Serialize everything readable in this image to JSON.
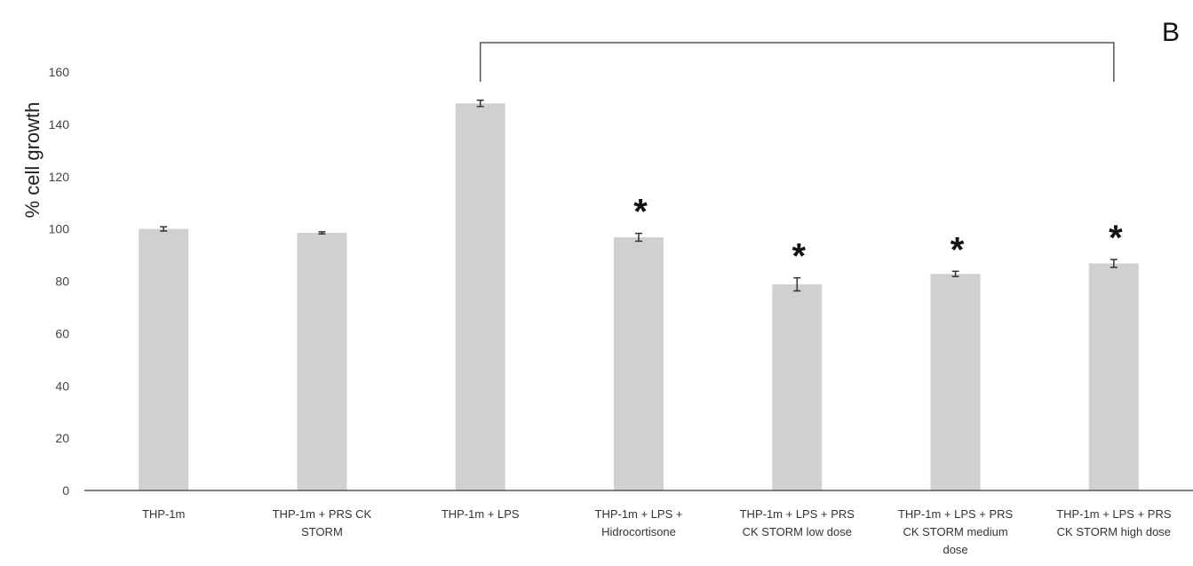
{
  "chart_data": {
    "type": "bar",
    "panel_label": "B",
    "ylabel": "% cell growth",
    "xlabel": "",
    "ylim": [
      0,
      160
    ],
    "yticks": [
      0,
      20,
      40,
      60,
      80,
      100,
      120,
      140,
      160
    ],
    "grid": false,
    "bar_color": "#d0d0d0",
    "categories": [
      [
        "THP-1m"
      ],
      [
        "THP-1m + PRS CK",
        "STORM"
      ],
      [
        "THP-1m + LPS"
      ],
      [
        "THP-1m + LPS +",
        "Hidrocortisone"
      ],
      [
        "THP-1m + LPS + PRS",
        "CK STORM low dose"
      ],
      [
        "THP-1m + LPS + PRS",
        "CK STORM medium",
        "dose"
      ],
      [
        "THP-1m + LPS + PRS",
        "CK STORM high dose"
      ]
    ],
    "values": [
      100,
      98.5,
      148,
      96.8,
      78.8,
      82.8,
      86.8
    ],
    "errors": [
      0.8,
      0.4,
      1.2,
      1.5,
      2.5,
      1.0,
      1.5
    ],
    "significance_marks": [
      "",
      "",
      "",
      "*",
      "*",
      "*",
      "*"
    ],
    "comparison_bracket": {
      "from_index": 2,
      "to_index": 6
    }
  }
}
